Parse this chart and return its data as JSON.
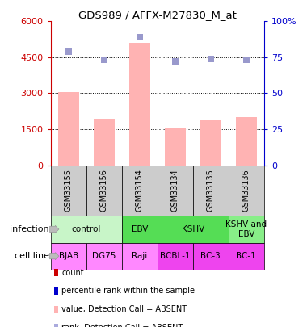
{
  "title": "GDS989 / AFFX-M27830_M_at",
  "samples": [
    "GSM33155",
    "GSM33156",
    "GSM33154",
    "GSM33134",
    "GSM33135",
    "GSM33136"
  ],
  "absent_bars": [
    3050,
    1950,
    5100,
    1570,
    1870,
    2000
  ],
  "absent_ranks": [
    79,
    73,
    89,
    72,
    74,
    73
  ],
  "ylim_left": [
    0,
    6000
  ],
  "ylim_right": [
    0,
    100
  ],
  "yticks_left": [
    0,
    1500,
    3000,
    4500,
    6000
  ],
  "ytick_labels_left": [
    "0",
    "1500",
    "3000",
    "4500",
    "6000"
  ],
  "yticks_right": [
    0,
    25,
    50,
    75,
    100
  ],
  "ytick_labels_right": [
    "0",
    "25",
    "50",
    "75",
    "100%"
  ],
  "infection_groups": [
    {
      "label": "control",
      "span": [
        0,
        2
      ],
      "color": "#c8f5c8"
    },
    {
      "label": "EBV",
      "span": [
        2,
        3
      ],
      "color": "#55dd55"
    },
    {
      "label": "KSHV",
      "span": [
        3,
        5
      ],
      "color": "#55dd55"
    },
    {
      "label": "KSHV and\nEBV",
      "span": [
        5,
        6
      ],
      "color": "#88ee88"
    }
  ],
  "cell_lines": [
    {
      "label": "BJAB",
      "span": [
        0,
        1
      ],
      "color": "#ff88ff"
    },
    {
      "label": "DG75",
      "span": [
        1,
        2
      ],
      "color": "#ff88ff"
    },
    {
      "label": "Raji",
      "span": [
        2,
        3
      ],
      "color": "#ff88ff"
    },
    {
      "label": "BCBL-1",
      "span": [
        3,
        4
      ],
      "color": "#ee44ee"
    },
    {
      "label": "BC-3",
      "span": [
        4,
        5
      ],
      "color": "#ee44ee"
    },
    {
      "label": "BC-1",
      "span": [
        5,
        6
      ],
      "color": "#ee44ee"
    }
  ],
  "absent_bar_color": "#ffb3b3",
  "rank_dot_color": "#9999cc",
  "left_axis_color": "#cc0000",
  "right_axis_color": "#0000cc",
  "sample_bg_color": "#cccccc",
  "legend_items": [
    {
      "color": "#cc0000",
      "label": "count"
    },
    {
      "color": "#0000cc",
      "label": "percentile rank within the sample"
    },
    {
      "color": "#ffb3b3",
      "label": "value, Detection Call = ABSENT"
    },
    {
      "color": "#aaaadd",
      "label": "rank, Detection Call = ABSENT"
    }
  ]
}
